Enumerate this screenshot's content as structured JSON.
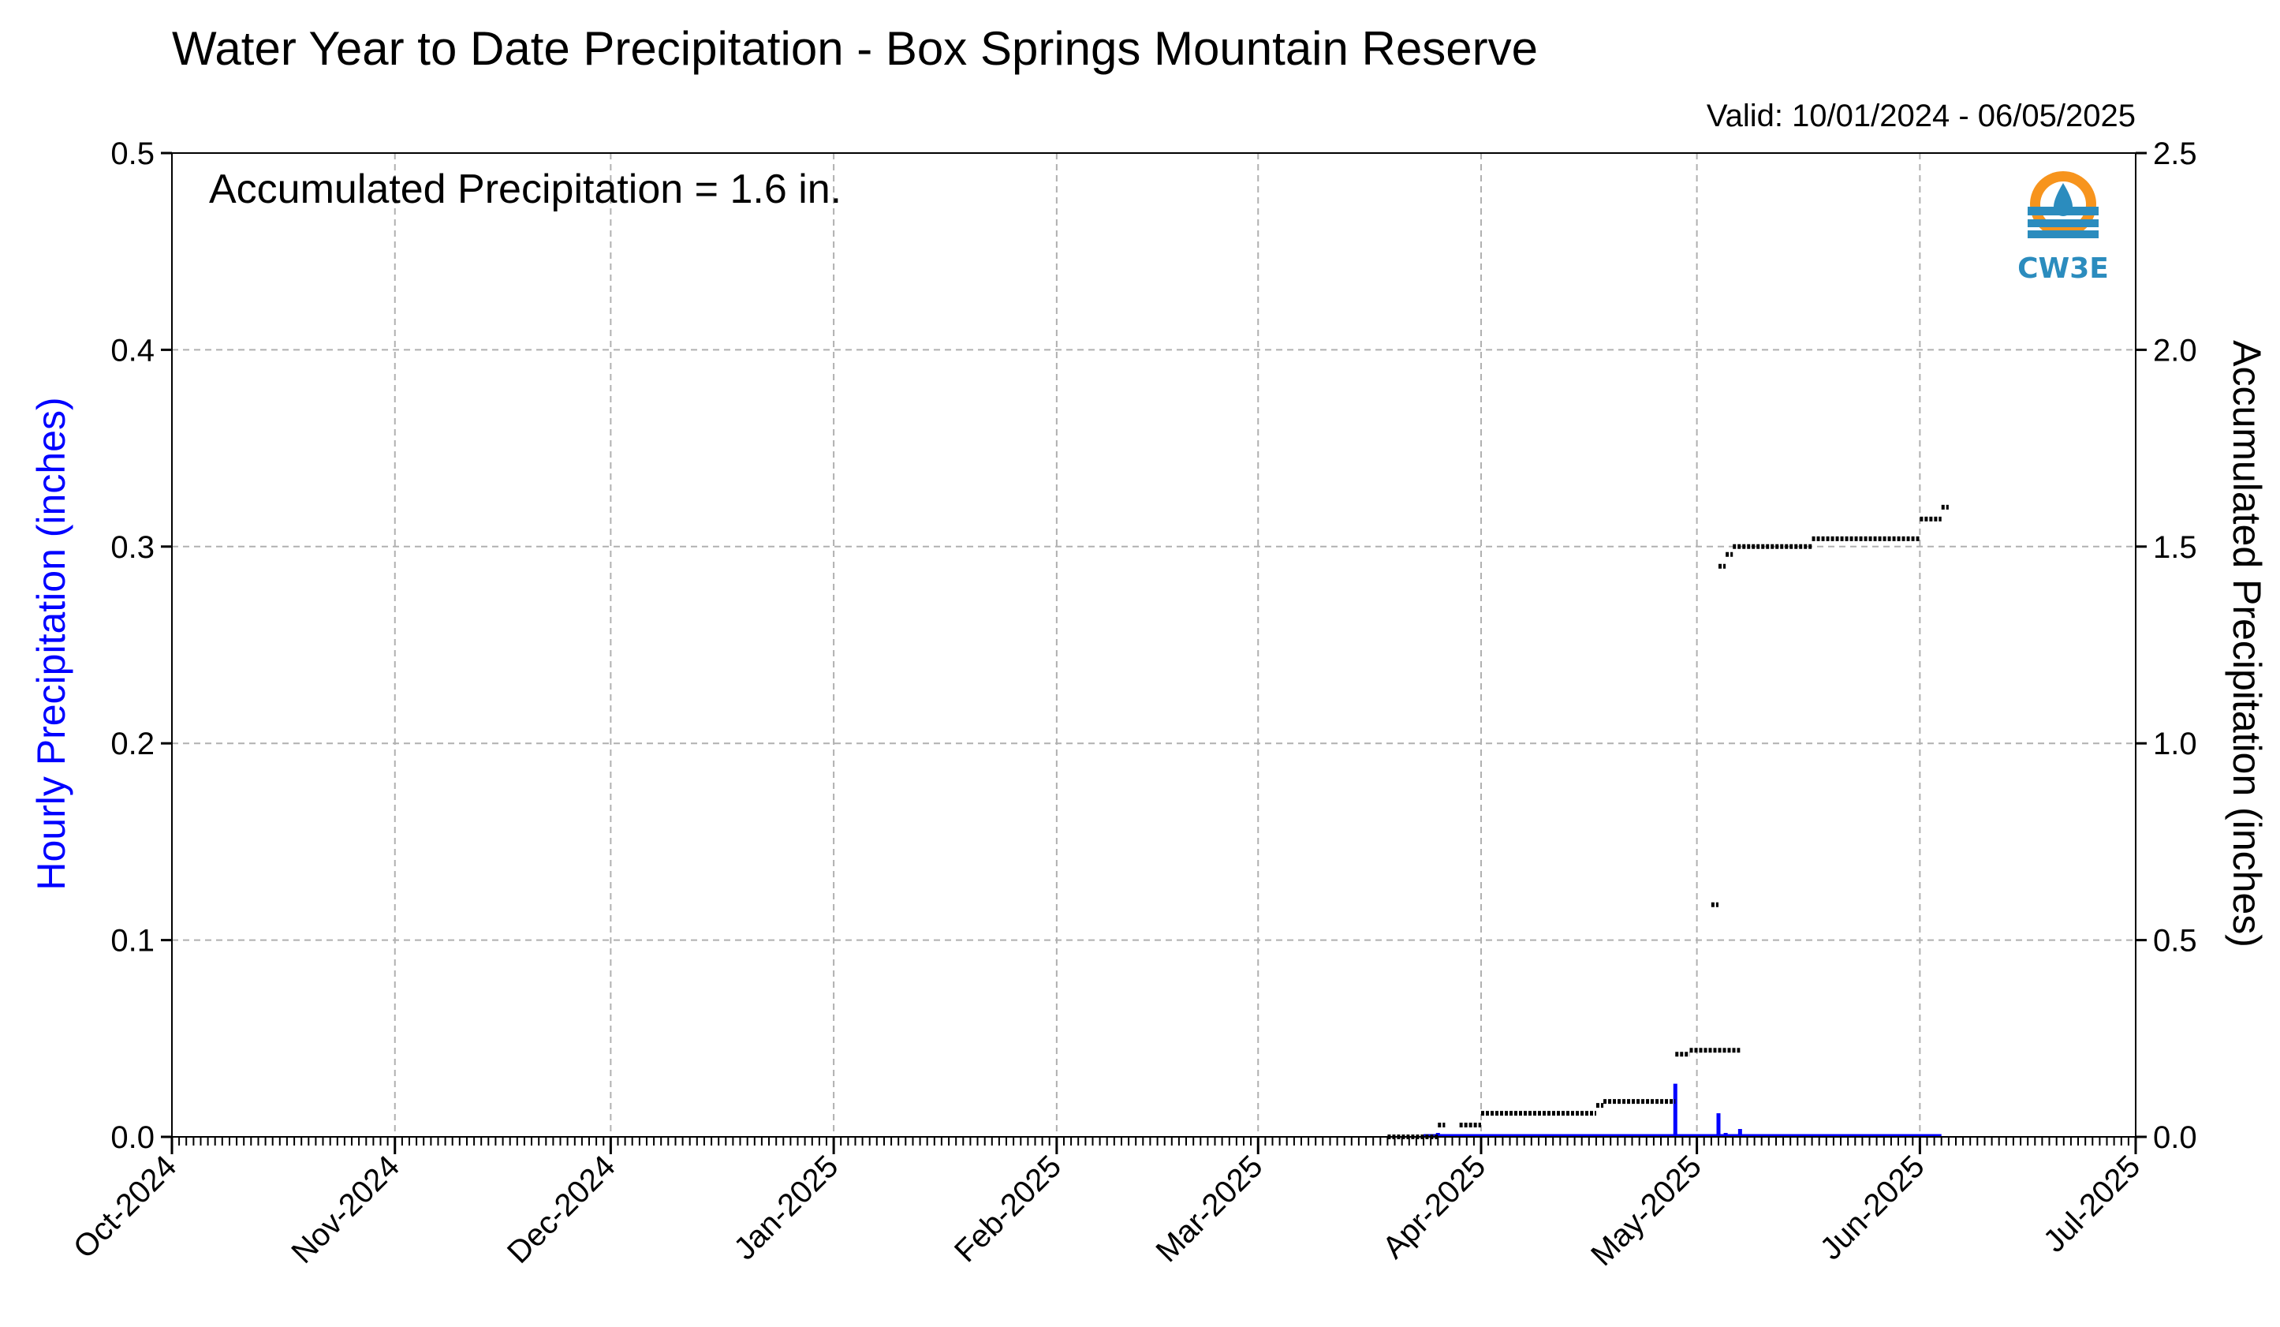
{
  "chart_data": {
    "type": "bar+line",
    "title": "Water Year to Date Precipitation - Box Springs Mountain Reserve",
    "valid_text": "Valid: 10/01/2024 - 06/05/2025",
    "annotation": "Accumulated Precipitation = 1.6 in.",
    "logo_text": "CW3E",
    "ylabel_left": "Hourly Precipitation (inches)",
    "ylabel_right": "Accumulated Precipitation (inches)",
    "xlim": [
      "2024-10-01",
      "2025-07-01"
    ],
    "ylim_left": [
      0,
      0.5
    ],
    "ylim_right": [
      0,
      2.5
    ],
    "x_ticks": [
      {
        "date": "2024-10-01",
        "label": "Oct-2024"
      },
      {
        "date": "2024-11-01",
        "label": "Nov-2024"
      },
      {
        "date": "2024-12-01",
        "label": "Dec-2024"
      },
      {
        "date": "2025-01-01",
        "label": "Jan-2025"
      },
      {
        "date": "2025-02-01",
        "label": "Feb-2025"
      },
      {
        "date": "2025-03-01",
        "label": "Mar-2025"
      },
      {
        "date": "2025-04-01",
        "label": "Apr-2025"
      },
      {
        "date": "2025-05-01",
        "label": "May-2025"
      },
      {
        "date": "2025-06-01",
        "label": "Jun-2025"
      },
      {
        "date": "2025-07-01",
        "label": "Jul-2025"
      }
    ],
    "y_ticks_left": [
      "0.0",
      "0.1",
      "0.2",
      "0.3",
      "0.4",
      "0.5"
    ],
    "y_ticks_right": [
      "0.0",
      "0.5",
      "1.0",
      "1.5",
      "2.0",
      "2.5"
    ],
    "grid": true,
    "colors": {
      "hourly": "#0000ff",
      "accumulated": "#000000",
      "grid": "#b0b0b0",
      "logo_orange": "#f7941d",
      "logo_blue": "#2b8cbe"
    },
    "hourly_series": {
      "name": "Hourly Precipitation",
      "points": [
        {
          "x": "2025-03-26",
          "y": 0.002
        },
        {
          "x": "2025-04-28",
          "y": 0.027
        },
        {
          "x": "2025-05-04",
          "y": 0.012
        },
        {
          "x": "2025-05-05",
          "y": 0.002
        },
        {
          "x": "2025-05-07",
          "y": 0.004
        }
      ],
      "baseline_start": "2025-03-24",
      "baseline_end": "2025-06-04"
    },
    "accumulated_series": {
      "name": "Accumulated Precipitation",
      "segments": [
        {
          "x0": "2025-03-19",
          "x1": "2025-03-26",
          "y": 0.0
        },
        {
          "x0": "2025-03-26",
          "x1": "2025-03-27",
          "y": 0.03
        },
        {
          "x0": "2025-03-29",
          "x1": "2025-04-01",
          "y": 0.03
        },
        {
          "x0": "2025-04-01",
          "x1": "2025-04-17",
          "y": 0.06
        },
        {
          "x0": "2025-04-17",
          "x1": "2025-04-18",
          "y": 0.08
        },
        {
          "x0": "2025-04-18",
          "x1": "2025-04-28",
          "y": 0.09
        },
        {
          "x0": "2025-04-28",
          "x1": "2025-04-30",
          "y": 0.21
        },
        {
          "x0": "2025-04-30",
          "x1": "2025-05-07",
          "y": 0.22
        },
        {
          "x0": "2025-05-03",
          "x1": "2025-05-04",
          "y": 0.59
        },
        {
          "x0": "2025-05-04",
          "x1": "2025-05-05",
          "y": 1.45
        },
        {
          "x0": "2025-05-05",
          "x1": "2025-05-06",
          "y": 1.48
        },
        {
          "x0": "2025-05-06",
          "x1": "2025-05-17",
          "y": 1.5
        },
        {
          "x0": "2025-05-17",
          "x1": "2025-06-01",
          "y": 1.52
        },
        {
          "x0": "2025-06-01",
          "x1": "2025-06-04",
          "y": 1.57
        },
        {
          "x0": "2025-06-04",
          "x1": "2025-06-05",
          "y": 1.6
        }
      ]
    }
  }
}
